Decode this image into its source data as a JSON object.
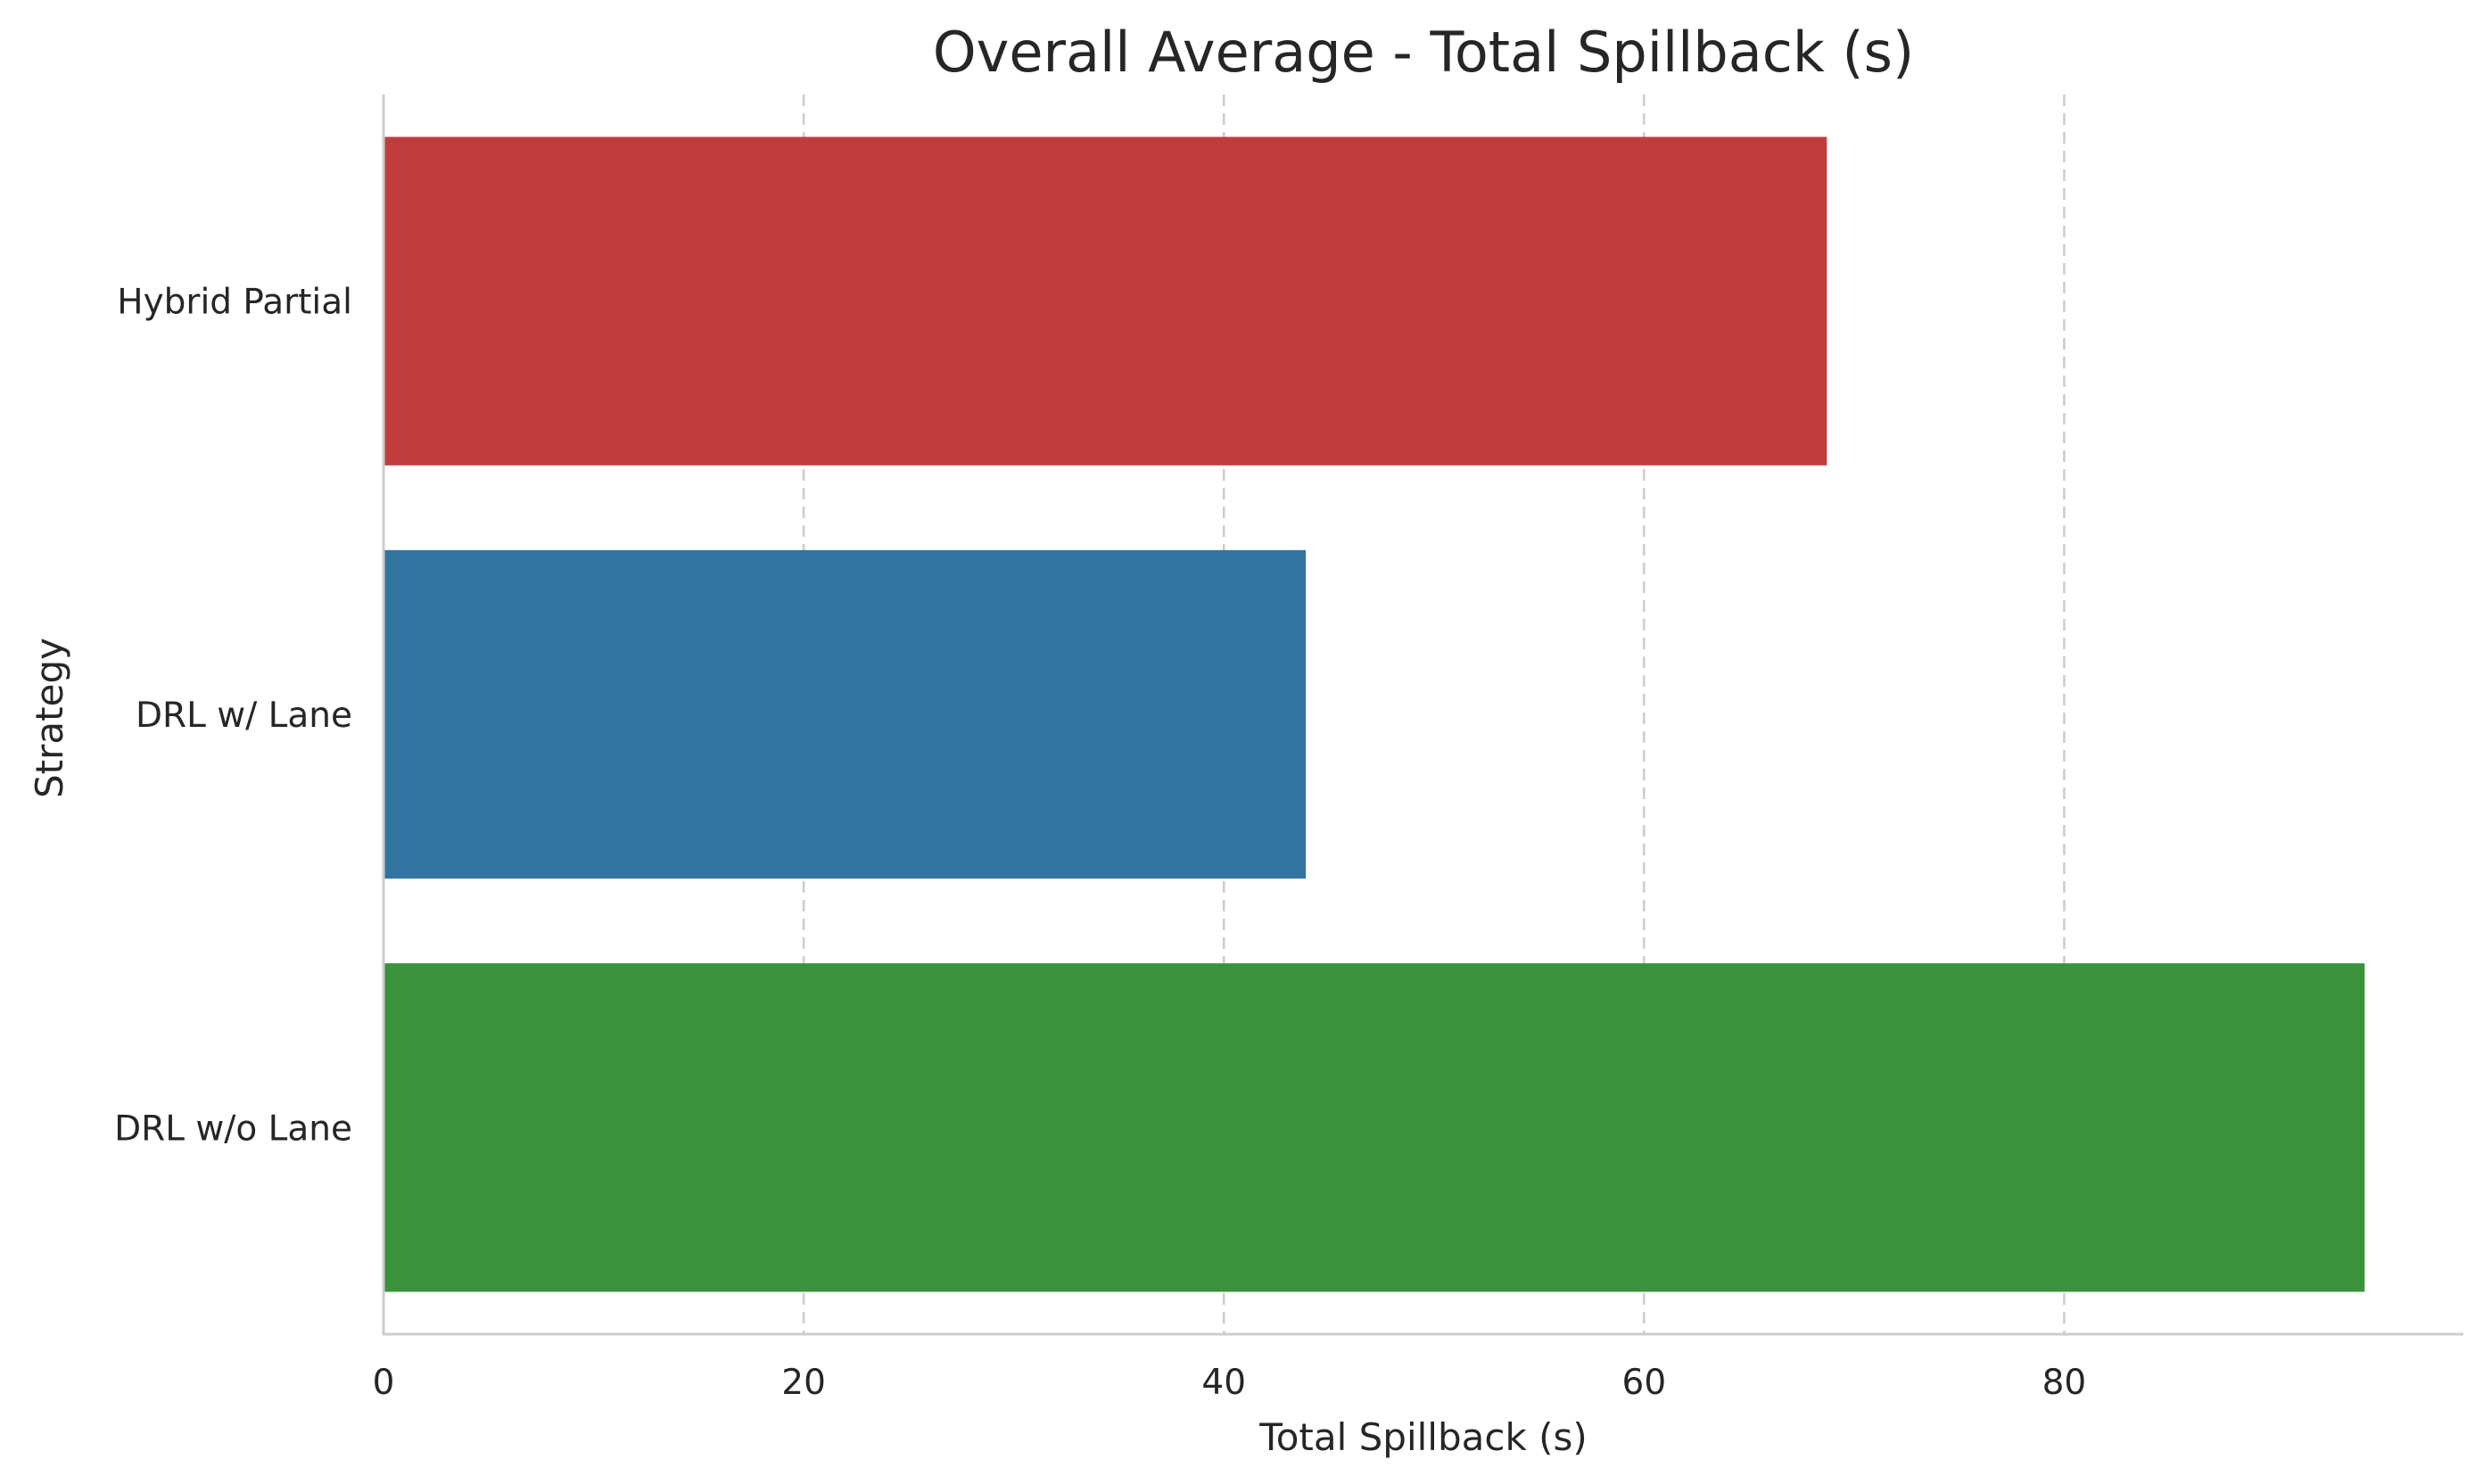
{
  "chart_data": {
    "type": "bar",
    "orientation": "horizontal",
    "title": "Overall Average - Total Spillback (s)",
    "xlabel": "Total Spillback (s)",
    "ylabel": "Strategy",
    "categories": [
      "Hybrid Partial",
      "DRL w/ Lane",
      "DRL w/o Lane"
    ],
    "values": [
      68.7,
      43.9,
      94.3
    ],
    "colors": [
      "#c03d3e",
      "#3274a1",
      "#3a923a"
    ],
    "xlim": [
      0,
      99
    ],
    "xticks": [
      0,
      20,
      40,
      60,
      80
    ],
    "xtick_labels": [
      "0",
      "20",
      "40",
      "60",
      "80"
    ],
    "grid": "x-major-dashed",
    "legend": "none"
  }
}
